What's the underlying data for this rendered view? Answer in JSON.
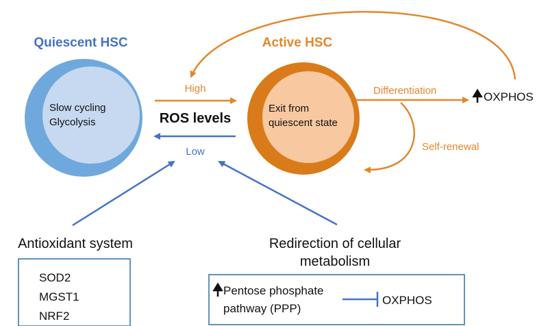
{
  "quiescent": {
    "title": "Quiescent HSC",
    "line1": "Slow cycling",
    "line2": "Glycolysis"
  },
  "active": {
    "title": "Active HSC",
    "line1": "Exit from",
    "line2": "quiescent state"
  },
  "ros": {
    "label": "ROS levels",
    "high": "High",
    "low": "Low"
  },
  "differentiation": "Differentiation",
  "self_renewal": "Self-renewal",
  "oxphos_top": "OXPHOS",
  "antioxidant": {
    "title": "Antioxidant system",
    "items": [
      "SOD2",
      "MGST1",
      "NRF2"
    ]
  },
  "redirection": {
    "title_line1": "Redirection of cellular",
    "title_line2": "metabolism",
    "ppp_line1": "Pentose phosphate",
    "ppp_line2": "pathway (PPP)",
    "oxphos": "OXPHOS"
  },
  "colors": {
    "blue_title": "#4472c4",
    "blue_outer": "#6fa8dc",
    "blue_inner": "#c6d9f0",
    "orange": "#e2872f",
    "orange_outer": "#d97b1a",
    "orange_inner": "#f8c8a0",
    "blue_arrow": "#4472c4",
    "box_border": "#2f6f9f"
  }
}
